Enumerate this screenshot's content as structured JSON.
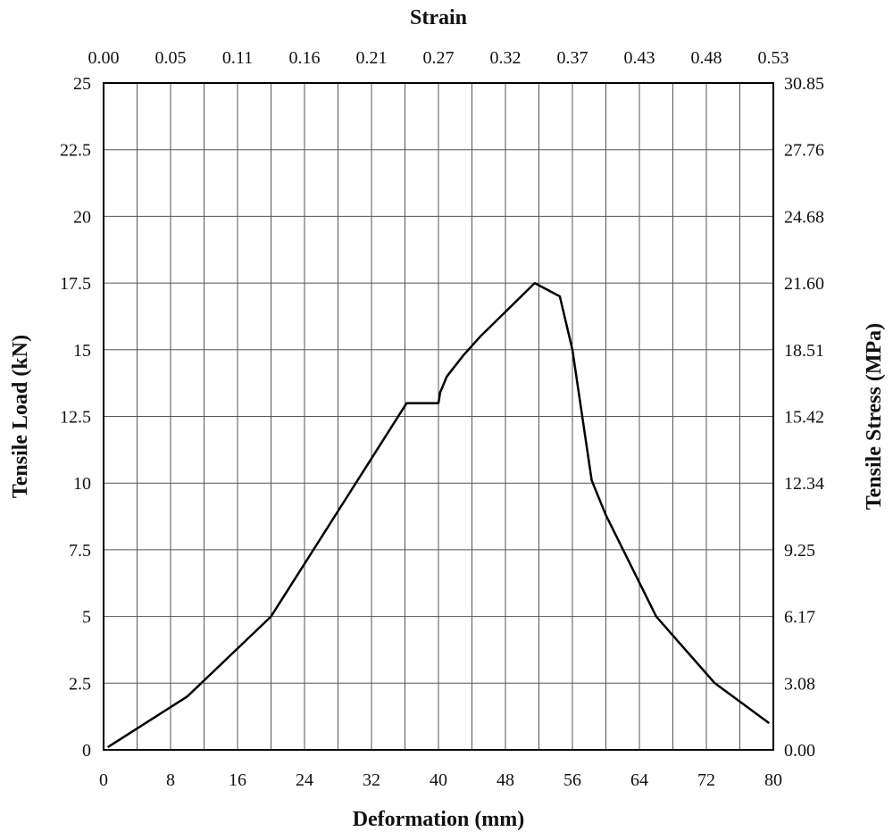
{
  "chart_data": {
    "type": "line",
    "title": "",
    "xlabel": "Deformation (mm)",
    "ylabel": "Tensile Load (kN)",
    "x2label": "Strain",
    "y2label": "Tensile Stress (MPa)",
    "xlim": [
      0,
      80
    ],
    "ylim": [
      0,
      25
    ],
    "grid": true,
    "x_ticks": [
      "0",
      "8",
      "16",
      "24",
      "32",
      "40",
      "48",
      "56",
      "64",
      "72",
      "80"
    ],
    "y_ticks": [
      "0",
      "2.5",
      "5",
      "7.5",
      "10",
      "12.5",
      "15",
      "17.5",
      "20",
      "22.5",
      "25"
    ],
    "x2_ticks": [
      "0.00",
      "0.05",
      "0.11",
      "0.16",
      "0.21",
      "0.27",
      "0.32",
      "0.37",
      "0.43",
      "0.48",
      "0.53"
    ],
    "y2_ticks": [
      "0.00",
      "3.08",
      "6.17",
      "9.25",
      "12.34",
      "15.42",
      "18.51",
      "21.60",
      "24.68",
      "27.76",
      "30.85"
    ],
    "series": [
      {
        "name": "Tensile Load",
        "x": [
          0.5,
          10,
          20,
          36.2,
          40,
          40.2,
          41,
          43,
          45,
          51.5,
          54.5,
          56,
          58.3,
          60,
          66,
          73,
          79.5
        ],
        "y": [
          0.1,
          2,
          5,
          13,
          13,
          13.4,
          14,
          14.8,
          15.5,
          17.5,
          17,
          15,
          10.1,
          8.8,
          5,
          2.5,
          1
        ]
      }
    ]
  }
}
